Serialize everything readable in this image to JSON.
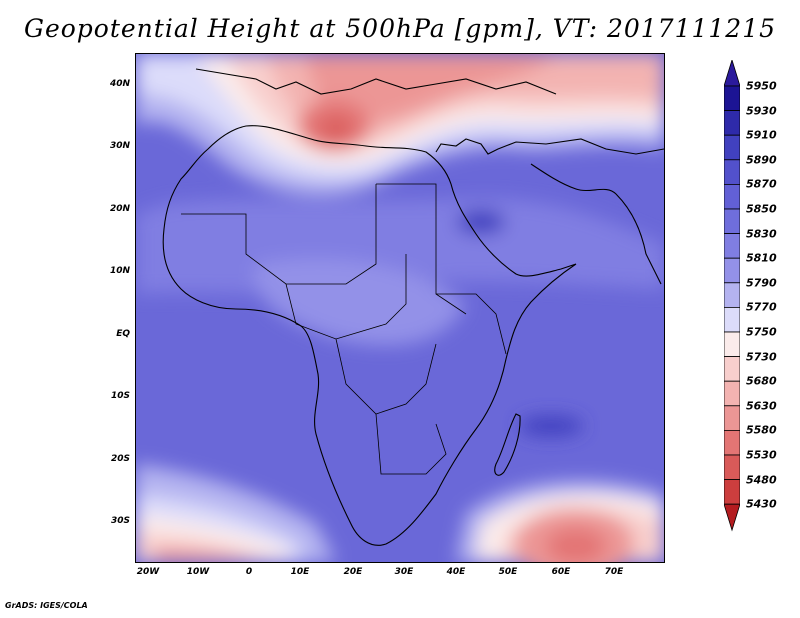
{
  "title": "Geopotential Height at 500hPa [gpm], VT: 2017111215",
  "credit": "GrADS: IGES/COLA",
  "chart_data": {
    "type": "heatmap",
    "variable": "Geopotential Height at 500hPa",
    "units": "gpm",
    "valid_time": "2017111215",
    "lon_ticks": [
      "20W",
      "10W",
      "0",
      "10E",
      "20E",
      "30E",
      "40E",
      "50E",
      "60E",
      "70E"
    ],
    "lat_ticks": [
      "40N",
      "30N",
      "20N",
      "10N",
      "EQ",
      "10S",
      "20S",
      "30S"
    ],
    "lon_range": [
      -22.5,
      77.5
    ],
    "lat_range": [
      -36.5,
      45
    ],
    "colorbar_levels": [
      "5950",
      "5930",
      "5910",
      "5890",
      "5870",
      "5850",
      "5830",
      "5810",
      "5790",
      "5770",
      "5750",
      "5730",
      "5680",
      "5630",
      "5580",
      "5530",
      "5480",
      "5430"
    ],
    "colorbar_colors": [
      "#1c1494",
      "#2e2aaa",
      "#4141bf",
      "#5251cc",
      "#6260d6",
      "#6f6edc",
      "#807ee2",
      "#9391e8",
      "#b4b3f0",
      "#dcdcfa",
      "#fbeceb",
      "#f8cfcd",
      "#f3b3b1",
      "#ec9695",
      "#e37574",
      "#d95a59",
      "#cc3e3e",
      "#b81f22"
    ],
    "colorbar_ends": {
      "top": "#2b1a9c",
      "bottom": "#b41c20"
    }
  }
}
